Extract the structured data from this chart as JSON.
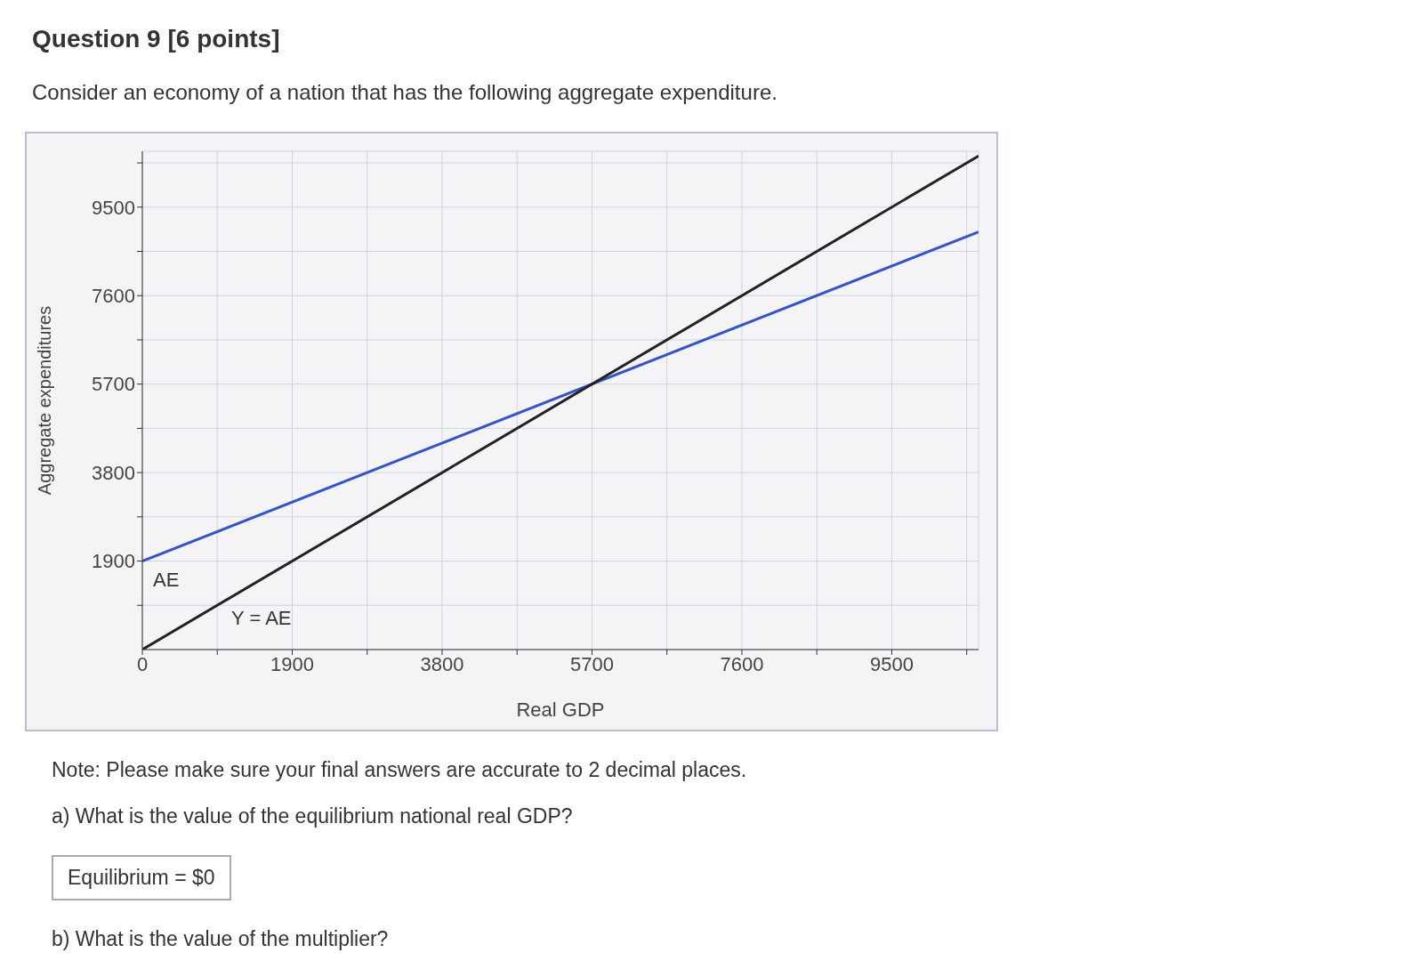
{
  "chart_data": {
    "type": "line",
    "title": "Question 9 [6 points]",
    "subtitle": "Consider an economy of a nation that has the following aggregate expenditure.",
    "xlabel": "Real GDP",
    "ylabel": "Aggregate expenditures",
    "x": [
      0,
      10600
    ],
    "series": [
      {
        "name": "AE",
        "color": "#3553c9",
        "values": [
          1900,
          8970
        ]
      },
      {
        "name": "Y = AE",
        "color": "#222222",
        "values": [
          0,
          10600
        ]
      }
    ],
    "xlim": [
      0,
      10600
    ],
    "ylim": [
      0,
      10700
    ],
    "xticks": [
      0,
      {
        "value": 950,
        "label": null
      },
      1900,
      {
        "value": 2850,
        "label": null
      },
      3800,
      {
        "value": 4750,
        "label": null
      },
      5700,
      {
        "value": 6650,
        "label": null
      },
      7600,
      {
        "value": 8550,
        "label": null
      },
      9500,
      {
        "value": 10450,
        "label": null
      }
    ],
    "yticks": [
      {
        "value": 950,
        "label": null
      },
      1900,
      {
        "value": 2850,
        "label": null
      },
      3800,
      {
        "value": 4750,
        "label": null
      },
      5700,
      {
        "value": 6650,
        "label": null
      },
      7600,
      {
        "value": 8550,
        "label": null
      },
      9500,
      {
        "value": 10450,
        "label": null
      }
    ],
    "grid": true,
    "legend": false,
    "marker": "none",
    "line_style": "solid",
    "annotations": [
      "Note: Please make sure your final answers are accurate to 2 decimal places.",
      "a) What is the value of the equilibrium national real GDP?",
      "Equilibrium = $0",
      "b) What is the value of the multiplier?"
    ]
  }
}
